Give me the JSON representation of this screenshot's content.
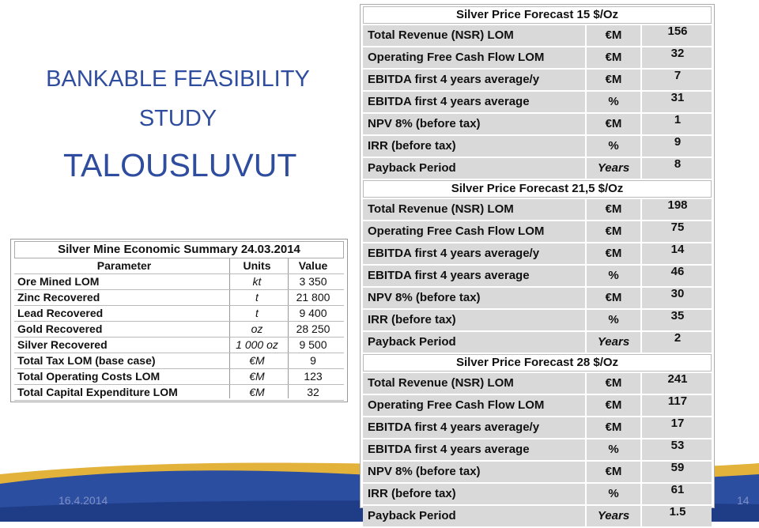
{
  "slide": {
    "title_line1": "BANKABLE FEASIBILITY",
    "title_line2": "STUDY",
    "title_line3": "TALOUSLUVUT",
    "date": "16.4.2014",
    "page_number": "14"
  },
  "summary_table": {
    "title": "Silver Mine Economic Summary 24.03.2014",
    "headers": [
      "Parameter",
      "Units",
      "Value"
    ],
    "rows": [
      {
        "parameter": "Ore Mined LOM",
        "units": "kt",
        "value": "3 350"
      },
      {
        "parameter": "Zinc Recovered",
        "units": "t",
        "value": "21 800"
      },
      {
        "parameter": "Lead Recovered",
        "units": "t",
        "value": "9 400"
      },
      {
        "parameter": "Gold Recovered",
        "units": "oz",
        "value": "28 250"
      },
      {
        "parameter": "Silver Recovered",
        "units": "1 000 oz",
        "value": "9 500"
      },
      {
        "parameter": "Total Tax LOM (base case)",
        "units": "€M",
        "value": "9"
      },
      {
        "parameter": "Total Operating Costs LOM",
        "units": "€M",
        "value": "123"
      },
      {
        "parameter": "Total Capital Expenditure LOM",
        "units": "€M",
        "value": "32"
      }
    ]
  },
  "forecast_table": {
    "sections": [
      {
        "title": "Silver Price Forecast 15 $/Oz",
        "rows": [
          {
            "label": "Total Revenue (NSR) LOM",
            "unit": "€M",
            "value": "156"
          },
          {
            "label": "Operating Free Cash Flow LOM",
            "unit": "€M",
            "value": "32"
          },
          {
            "label": "EBITDA first 4 years average/y",
            "unit": "€M",
            "value": "7"
          },
          {
            "label": "EBITDA first 4 years average",
            "unit": "%",
            "value": "31"
          },
          {
            "label": "NPV 8% (before tax)",
            "unit": "€M",
            "value": "1"
          },
          {
            "label": "IRR (before tax)",
            "unit": "%",
            "value": "9"
          },
          {
            "label": "Payback Period",
            "unit": "Years",
            "value": "8"
          }
        ]
      },
      {
        "title": "Silver Price Forecast  21,5 $/Oz",
        "rows": [
          {
            "label": "Total Revenue (NSR) LOM",
            "unit": "€M",
            "value": "198"
          },
          {
            "label": "Operating Free Cash Flow LOM",
            "unit": "€M",
            "value": "75"
          },
          {
            "label": "EBITDA first 4 years average/y",
            "unit": "€M",
            "value": "14"
          },
          {
            "label": "EBITDA first 4 years average",
            "unit": "%",
            "value": "46"
          },
          {
            "label": "NPV 8% (before tax)",
            "unit": "€M",
            "value": "30"
          },
          {
            "label": "IRR (before tax)",
            "unit": "%",
            "value": "35"
          },
          {
            "label": "Payback Period",
            "unit": "Years",
            "value": "2"
          }
        ]
      },
      {
        "title": "Silver Price Forecast 28 $/Oz",
        "rows": [
          {
            "label": "Total Revenue (NSR) LOM",
            "unit": "€M",
            "value": "241"
          },
          {
            "label": "Operating Free Cash Flow LOM",
            "unit": "€M",
            "value": "117"
          },
          {
            "label": "EBITDA first 4 years average/y",
            "unit": "€M",
            "value": "17"
          },
          {
            "label": "EBITDA first 4 years average",
            "unit": "%",
            "value": "53"
          },
          {
            "label": "NPV 8% (before tax)",
            "unit": "€M",
            "value": "59"
          },
          {
            "label": "IRR (before tax)",
            "unit": "%",
            "value": "61"
          },
          {
            "label": "Payback Period",
            "unit": "Years",
            "value": "1.5"
          }
        ]
      }
    ]
  },
  "colors": {
    "title_blue": "#2f4d9e",
    "footer_blue": "#2b4ea0",
    "footer_gold": "#e2b23a",
    "row_gray": "#d9d9d9"
  }
}
